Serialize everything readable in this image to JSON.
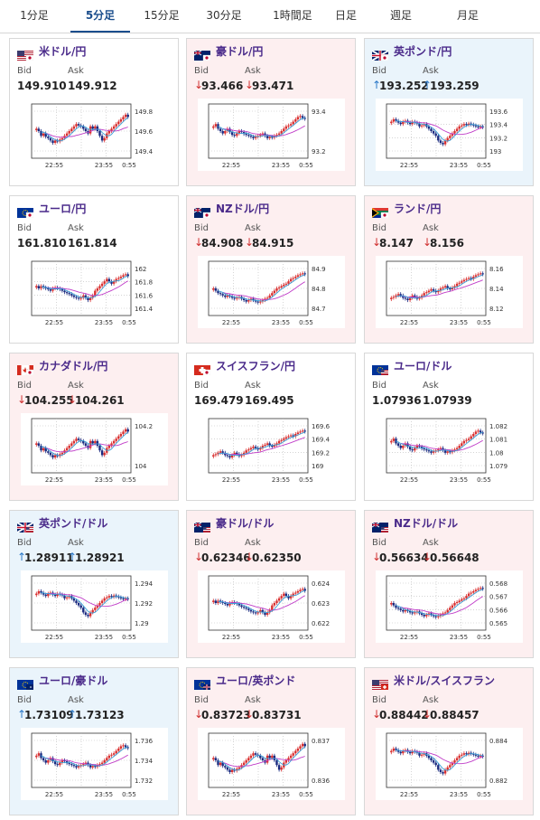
{
  "tabs": [
    {
      "label": "1分足",
      "active": false
    },
    {
      "label": "5分足",
      "active": true
    },
    {
      "label": "15分足",
      "active": false
    },
    {
      "label": "30分足",
      "active": false
    },
    {
      "label": "1時間足",
      "active": false
    },
    {
      "label": "日足",
      "active": false
    },
    {
      "label": "週足",
      "active": false
    },
    {
      "label": "月足",
      "active": false
    }
  ],
  "labels": {
    "bid": "Bid",
    "ask": "Ask"
  },
  "colors": {
    "up": "#2a78c8",
    "down": "#d03030",
    "candle_up": "#d93030",
    "candle_down": "#1a2a80",
    "ma_short": "#3aa0d8",
    "ma_long": "#c03cc8"
  },
  "cards": [
    {
      "name": "米ドル/円",
      "flag": "us-jp-flag-icon",
      "bg": "white",
      "bid": "149.910",
      "ask": "149.912",
      "bid_dir": "none",
      "ask_dir": "none",
      "chart_data": {
        "type": "candlestick",
        "x_ticks": [
          "22:55",
          "23:55",
          "0:55"
        ],
        "y_ticks": [
          "149.8",
          "149.6",
          "149.4"
        ]
      }
    },
    {
      "name": "豪ドル/円",
      "flag": "au-jp-flag-icon",
      "bg": "pink",
      "bid": "93.466",
      "ask": "93.471",
      "bid_dir": "down",
      "ask_dir": "down",
      "chart_data": {
        "type": "candlestick",
        "x_ticks": [
          "22:55",
          "23:55",
          "0:55"
        ],
        "y_ticks": [
          "93.4",
          "93.2"
        ]
      }
    },
    {
      "name": "英ポンド/円",
      "flag": "gb-jp-flag-icon",
      "bg": "blue",
      "bid": "193.252",
      "ask": "193.259",
      "bid_dir": "up",
      "ask_dir": "up",
      "chart_data": {
        "type": "candlestick",
        "x_ticks": [
          "22:55",
          "23:55",
          "0:55"
        ],
        "y_ticks": [
          "193.6",
          "193.4",
          "193.2",
          "193"
        ]
      }
    },
    {
      "name": "ユーロ/円",
      "flag": "eu-jp-flag-icon",
      "bg": "white",
      "bid": "161.810",
      "ask": "161.814",
      "bid_dir": "none",
      "ask_dir": "none",
      "chart_data": {
        "type": "candlestick",
        "x_ticks": [
          "22:55",
          "23:55",
          "0:55"
        ],
        "y_ticks": [
          "162",
          "161.8",
          "161.6",
          "161.4"
        ]
      }
    },
    {
      "name": "NZドル/円",
      "flag": "nz-jp-flag-icon",
      "bg": "pink",
      "bid": "84.908",
      "ask": "84.915",
      "bid_dir": "down",
      "ask_dir": "down",
      "chart_data": {
        "type": "candlestick",
        "x_ticks": [
          "22:55",
          "23:55",
          "0:55"
        ],
        "y_ticks": [
          "84.9",
          "84.8",
          "84.7"
        ]
      }
    },
    {
      "name": "ランド/円",
      "flag": "za-jp-flag-icon",
      "bg": "pink",
      "bid": "8.147",
      "ask": "8.156",
      "bid_dir": "down",
      "ask_dir": "down",
      "chart_data": {
        "type": "candlestick",
        "x_ticks": [
          "22:55",
          "23:55",
          "0:55"
        ],
        "y_ticks": [
          "8.16",
          "8.14",
          "8.12"
        ]
      }
    },
    {
      "name": "カナダドル/円",
      "flag": "ca-jp-flag-icon",
      "bg": "pink",
      "bid": "104.255",
      "ask": "104.261",
      "bid_dir": "down",
      "ask_dir": "down",
      "chart_data": {
        "type": "candlestick",
        "x_ticks": [
          "22:55",
          "23:55",
          "0:55"
        ],
        "y_ticks": [
          "104.2",
          "104"
        ]
      }
    },
    {
      "name": "スイスフラン/円",
      "flag": "ch-jp-flag-icon",
      "bg": "white",
      "bid": "169.479",
      "ask": "169.495",
      "bid_dir": "none",
      "ask_dir": "none",
      "chart_data": {
        "type": "candlestick",
        "x_ticks": [
          "22:55",
          "23:55",
          "0:55"
        ],
        "y_ticks": [
          "169.6",
          "169.4",
          "169.2",
          "169"
        ]
      }
    },
    {
      "name": "ユーロ/ドル",
      "flag": "eu-us-flag-icon",
      "bg": "white",
      "bid": "1.07936",
      "ask": "1.07939",
      "bid_dir": "none",
      "ask_dir": "none",
      "chart_data": {
        "type": "candlestick",
        "x_ticks": [
          "22:55",
          "23:55",
          "0:55"
        ],
        "y_ticks": [
          "1.082",
          "1.081",
          "1.08",
          "1.079"
        ]
      }
    },
    {
      "name": "英ポンド/ドル",
      "flag": "gb-us-flag-icon",
      "bg": "blue",
      "bid": "1.28911",
      "ask": "1.28921",
      "bid_dir": "up",
      "ask_dir": "up",
      "chart_data": {
        "type": "candlestick",
        "x_ticks": [
          "22:55",
          "23:55",
          "0:55"
        ],
        "y_ticks": [
          "1.294",
          "1.292",
          "1.29"
        ]
      }
    },
    {
      "name": "豪ドル/ドル",
      "flag": "au-us-flag-icon",
      "bg": "pink",
      "bid": "0.62346",
      "ask": "0.62350",
      "bid_dir": "down",
      "ask_dir": "down",
      "chart_data": {
        "type": "candlestick",
        "x_ticks": [
          "22:55",
          "23:55",
          "0:55"
        ],
        "y_ticks": [
          "0.624",
          "0.623",
          "0.622"
        ]
      }
    },
    {
      "name": "NZドル/ドル",
      "flag": "nz-us-flag-icon",
      "bg": "pink",
      "bid": "0.56634",
      "ask": "0.56648",
      "bid_dir": "down",
      "ask_dir": "down",
      "chart_data": {
        "type": "candlestick",
        "x_ticks": [
          "22:55",
          "23:55",
          "0:55"
        ],
        "y_ticks": [
          "0.568",
          "0.567",
          "0.566",
          "0.565"
        ]
      }
    },
    {
      "name": "ユーロ/豪ドル",
      "flag": "eu-au-flag-icon",
      "bg": "blue",
      "bid": "1.73109",
      "ask": "1.73123",
      "bid_dir": "up",
      "ask_dir": "up",
      "chart_data": {
        "type": "candlestick",
        "x_ticks": [
          "22:55",
          "23:55",
          "0:55"
        ],
        "y_ticks": [
          "1.736",
          "1.734",
          "1.732"
        ]
      }
    },
    {
      "name": "ユーロ/英ポンド",
      "flag": "eu-gb-flag-icon",
      "bg": "pink",
      "bid": "0.83723",
      "ask": "0.83731",
      "bid_dir": "down",
      "ask_dir": "down",
      "chart_data": {
        "type": "candlestick",
        "x_ticks": [
          "22:55",
          "23:55",
          "0:55"
        ],
        "y_ticks": [
          "0.837",
          "0.836"
        ]
      }
    },
    {
      "name": "米ドル/スイスフラン",
      "flag": "us-ch-flag-icon",
      "bg": "pink",
      "bid": "0.88442",
      "ask": "0.88457",
      "bid_dir": "down",
      "ask_dir": "down",
      "chart_data": {
        "type": "candlestick",
        "x_ticks": [
          "22:55",
          "23:55",
          "0:55"
        ],
        "y_ticks": [
          "0.884",
          "0.882"
        ]
      }
    }
  ]
}
